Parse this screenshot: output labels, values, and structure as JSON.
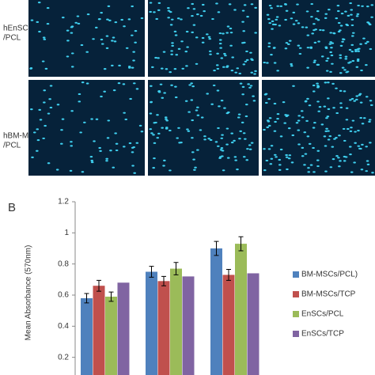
{
  "panel_a": {
    "row_labels": [
      [
        "hEnSCs",
        "/PCL"
      ],
      [
        "hBM-MSCs",
        "/PCL"
      ]
    ]
  },
  "panel_b_label": "B",
  "chart_data": {
    "type": "bar",
    "ylabel": "Mean Absorbance (570nm)",
    "categories": [
      null,
      null,
      null
    ],
    "series": [
      {
        "name": "BM-MSCs/PCL)",
        "color": "#4f81bd",
        "values": [
          0.58,
          0.75,
          0.9
        ],
        "errors": [
          0.03,
          0.035,
          0.045
        ]
      },
      {
        "name": "BM-MSCs/TCP",
        "color": "#c0504d",
        "values": [
          0.66,
          0.69,
          0.73
        ],
        "errors": [
          0.035,
          0.03,
          0.035
        ]
      },
      {
        "name": "EnSCs/PCL",
        "color": "#9bbb59",
        "values": [
          0.59,
          0.77,
          0.93
        ],
        "errors": [
          0.03,
          0.04,
          0.045
        ]
      },
      {
        "name": "EnSCs/TCP",
        "color": "#8064a2",
        "values": [
          0.68,
          0.72,
          0.74
        ],
        "errors": [
          null,
          null,
          null
        ]
      }
    ],
    "ylim": [
      0,
      1.2
    ],
    "yticks": [
      0.2,
      0.4,
      0.6,
      0.8,
      1,
      1.2
    ],
    "legend": "right"
  }
}
